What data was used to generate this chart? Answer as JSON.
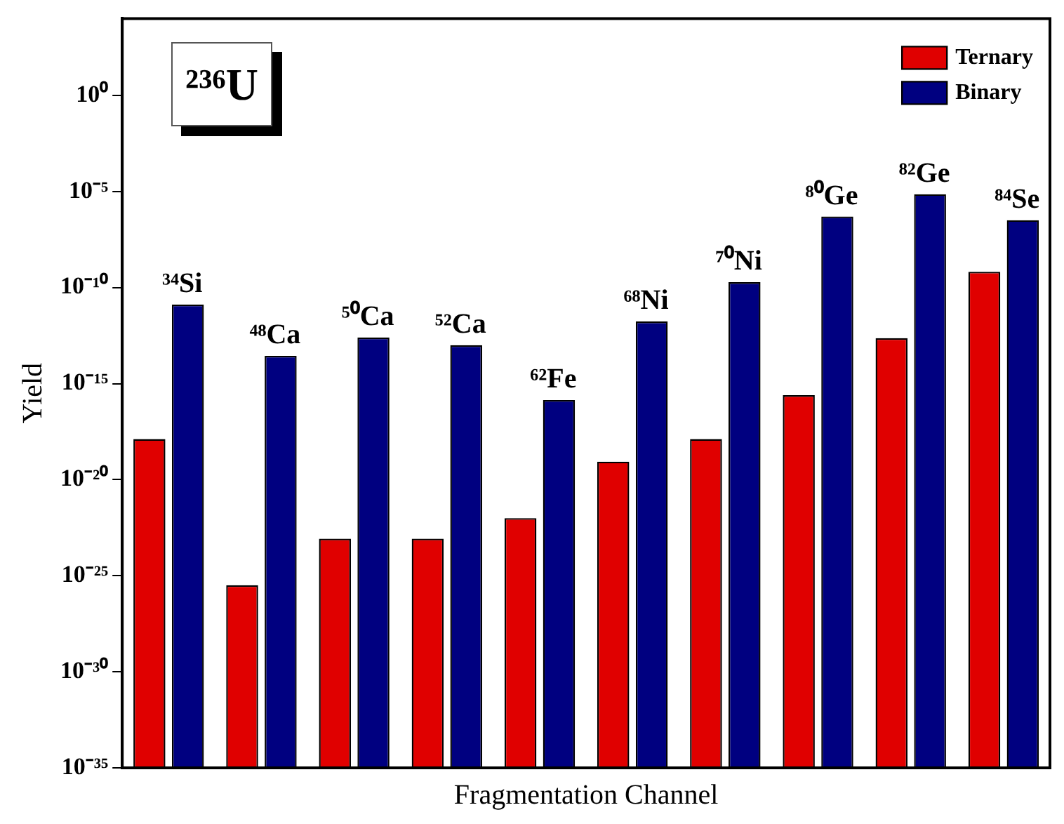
{
  "chart_data": {
    "type": "bar",
    "xlabel": "Fragmentation Channel",
    "ylabel": "Yield",
    "categories": [
      "³⁴Si",
      "⁴⁸Ca",
      "⁵⁰Ca",
      "⁵²Ca",
      "⁶²Fe",
      "⁶⁸Ni",
      "⁷⁰Ni",
      "⁸⁰Ge",
      "⁸²Ge",
      "⁸⁴Se"
    ],
    "series": [
      {
        "name": "Ternary",
        "color": "#e00000",
        "values": [
          1.3e-18,
          3.2e-26,
          8.5e-24,
          8.5e-24,
          1e-22,
          8.7e-20,
          1.3e-18,
          2.5e-16,
          2.3e-13,
          6.6e-10
        ]
      },
      {
        "name": "Binary",
        "color": "#000080",
        "values": [
          1.3e-11,
          2.8e-14,
          2.5e-13,
          1e-13,
          1.4e-16,
          1.7e-12,
          1.9e-10,
          5e-07,
          7.2e-06,
          3.2e-07
        ]
      }
    ],
    "log": "y",
    "ylim": [
      1e-35,
      10000.0
    ],
    "yticks": [
      {
        "value": 1,
        "label": "10⁰"
      },
      {
        "value": 1e-05,
        "label": "10⁻⁵"
      },
      {
        "value": 1e-10,
        "label": "10⁻¹⁰"
      },
      {
        "value": 1e-15,
        "label": "10⁻¹⁵"
      },
      {
        "value": 1e-20,
        "label": "10⁻²⁰"
      },
      {
        "value": 1e-25,
        "label": "10⁻²⁵"
      },
      {
        "value": 1e-30,
        "label": "10⁻³⁰"
      },
      {
        "value": 1e-35,
        "label": "10⁻³⁵"
      }
    ],
    "annotations": [
      "²³⁶U"
    ],
    "legend": "top right",
    "grid": false
  }
}
